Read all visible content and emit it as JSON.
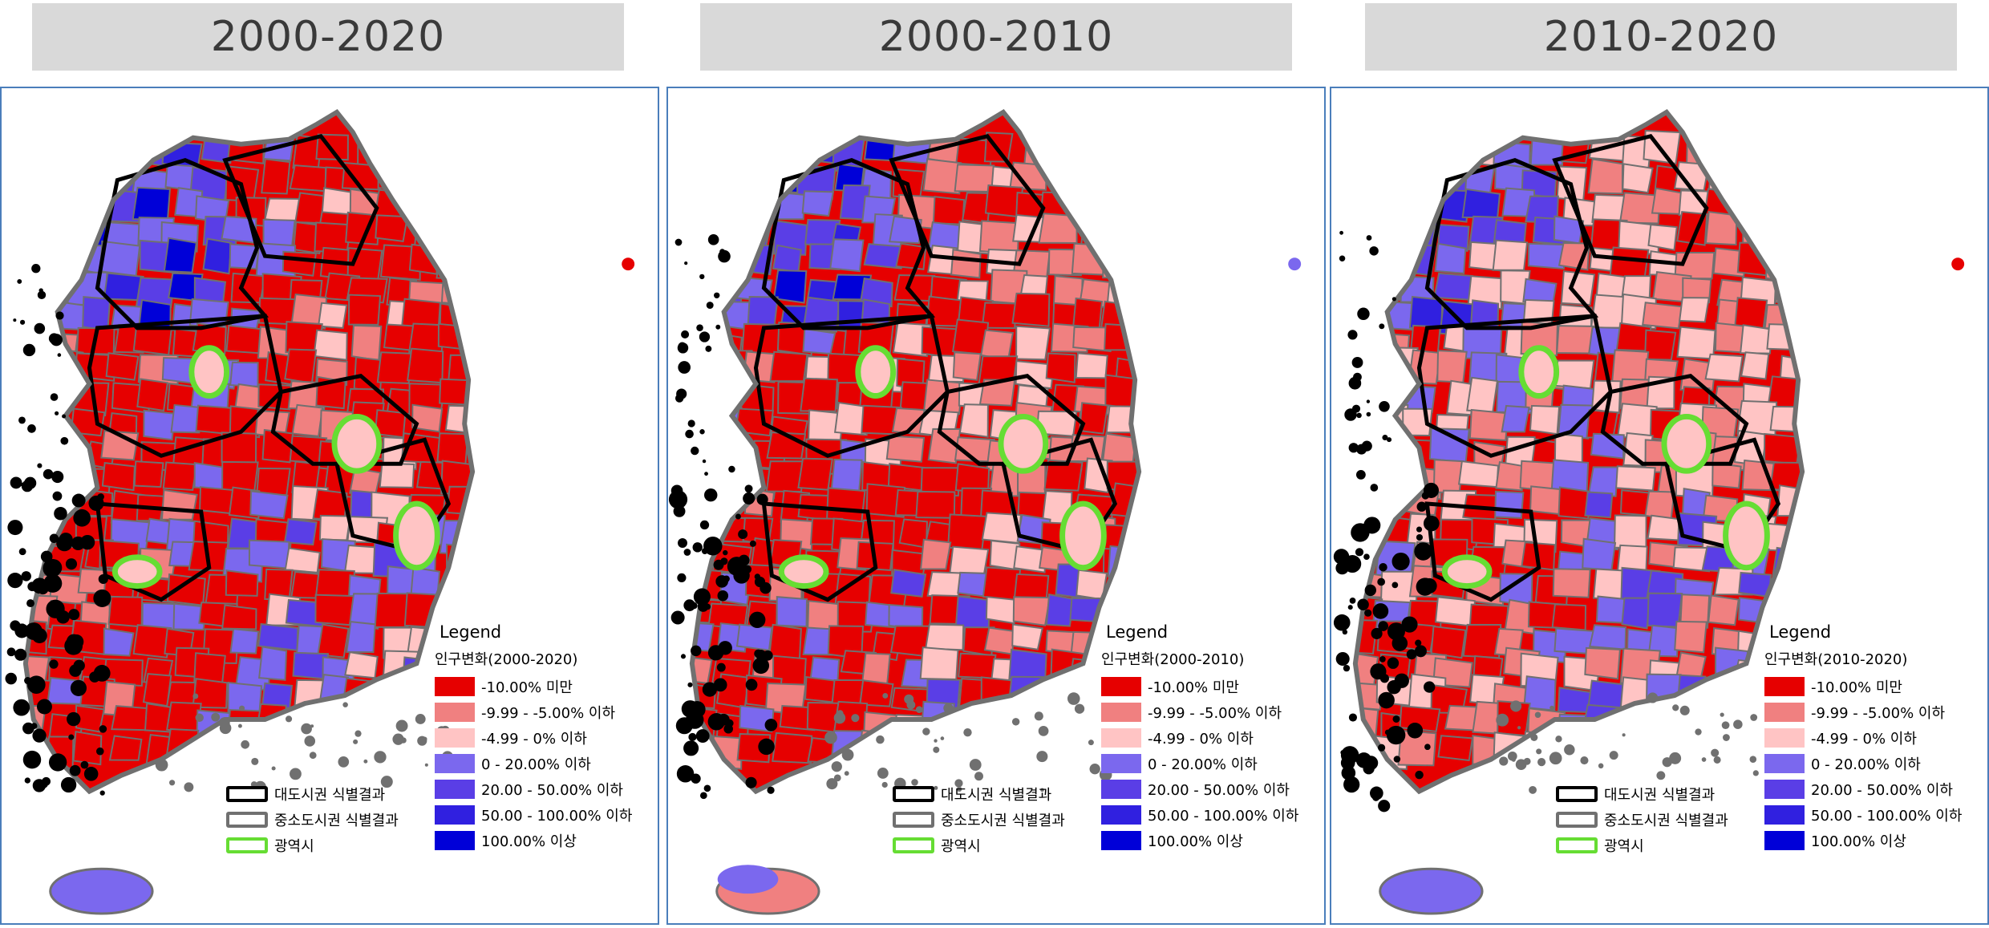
{
  "colors": {
    "class_1": "#e60000",
    "class_2": "#f08080",
    "class_3": "#ffc4c4",
    "class_4": "#7b68ee",
    "class_5": "#5a3ee6",
    "class_6": "#3020e0",
    "class_7": "#0000d8",
    "metro_boundary": "#000000",
    "city_boundary": "#707070",
    "metro_city": "#66dd33",
    "frame_border": "#4a7ebb",
    "title_bg": "#d9d9d9"
  },
  "maps": [
    {
      "title": "2000-2020",
      "legend": {
        "title": "Legend",
        "subtitle": "인구변화(2000-2020)",
        "classes": [
          "-10.00% 미만",
          "-9.99 - -5.00% 이하",
          "-4.99 - 0% 이하",
          "0 - 20.00% 이하",
          "20.00 - 50.00% 이하",
          "50.00 - 100.00% 이하",
          "100.00% 이상"
        ]
      },
      "boundaries": [
        "대도시권 식별결과",
        "중소도시권 식별결과",
        "광역시"
      ]
    },
    {
      "title": "2000-2010",
      "legend": {
        "title": "Legend",
        "subtitle": "인구변화(2000-2010)",
        "classes": [
          "-10.00% 미만",
          "-9.99 - -5.00% 이하",
          "-4.99 - 0% 이하",
          "0 - 20.00% 이하",
          "20.00 - 50.00% 이하",
          "50.00 - 100.00% 이하",
          "100.00% 이상"
        ]
      },
      "boundaries": [
        "대도시권 식별결과",
        "중소도시권 식별결과",
        "광역시"
      ]
    },
    {
      "title": "2010-2020",
      "legend": {
        "title": "Legend",
        "subtitle": "인구변화(2010-2020)",
        "classes": [
          "-10.00% 미만",
          "-9.99 - -5.00% 이하",
          "-4.99 - 0% 이하",
          "0 - 20.00% 이하",
          "20.00 - 50.00% 이하",
          "50.00 - 100.00% 이하",
          "100.00% 이상"
        ]
      },
      "boundaries": [
        "대도시권 식별결과",
        "중소도시권 식별결과",
        "광역시"
      ]
    }
  ]
}
